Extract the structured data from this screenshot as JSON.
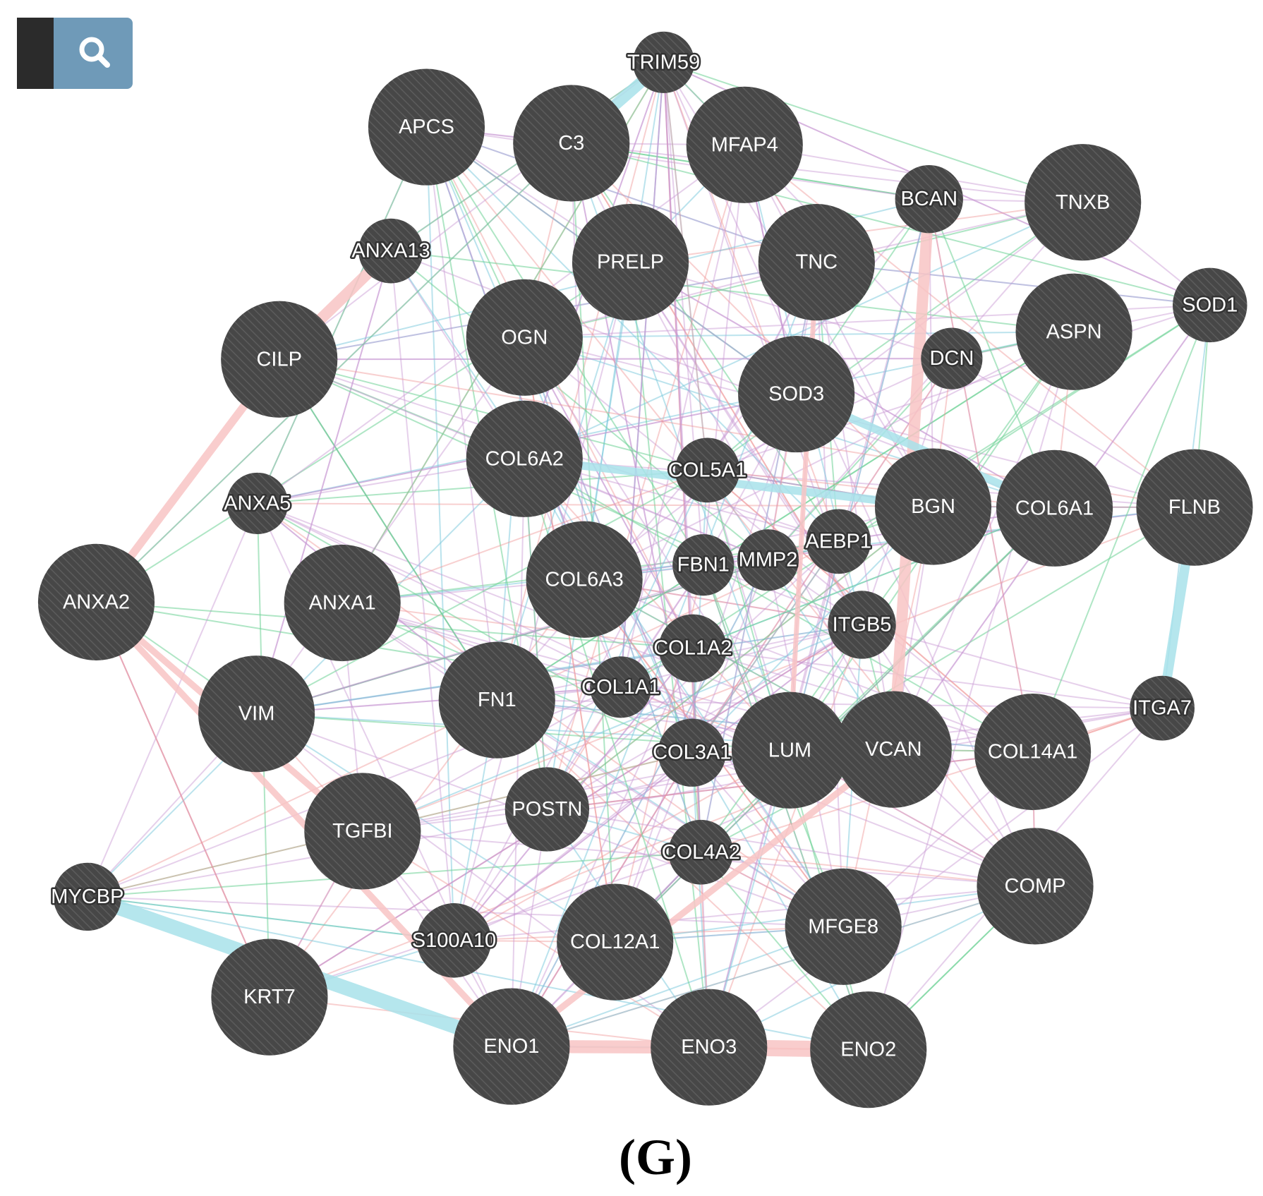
{
  "nodes": [
    {
      "label": "TRIM59"
    },
    {
      "label": "APCS"
    },
    {
      "label": "C3"
    },
    {
      "label": "MFAP4"
    },
    {
      "label": "BCAN"
    },
    {
      "label": "TNXB"
    },
    {
      "label": "ANXA13"
    },
    {
      "label": "PRELP"
    },
    {
      "label": "TNC"
    },
    {
      "label": "SOD1"
    },
    {
      "label": "CILP"
    },
    {
      "label": "OGN"
    },
    {
      "label": "ASPN"
    },
    {
      "label": "DCN"
    },
    {
      "label": "SOD3"
    },
    {
      "label": "COL6A2"
    },
    {
      "label": "COL5A1"
    },
    {
      "label": "BGN"
    },
    {
      "label": "COL6A1"
    },
    {
      "label": "FLNB"
    },
    {
      "label": "ANXA5"
    },
    {
      "label": "AEBP1"
    },
    {
      "label": "FBN1"
    },
    {
      "label": "MMP2"
    },
    {
      "label": "COL6A3"
    },
    {
      "label": "ANXA2"
    },
    {
      "label": "ANXA1"
    },
    {
      "label": "ITGB5"
    },
    {
      "label": "COL1A2"
    },
    {
      "label": "COL1A1"
    },
    {
      "label": "FN1"
    },
    {
      "label": "VIM"
    },
    {
      "label": "ITGA7"
    },
    {
      "label": "COL3A1"
    },
    {
      "label": "LUM"
    },
    {
      "label": "VCAN"
    },
    {
      "label": "COL14A1"
    },
    {
      "label": "POSTN"
    },
    {
      "label": "TGFBI"
    },
    {
      "label": "COL4A2"
    },
    {
      "label": "COMP"
    },
    {
      "label": "MYCBP"
    },
    {
      "label": "MFGE8"
    },
    {
      "label": "S100A10"
    },
    {
      "label": "COL12A1"
    },
    {
      "label": "KRT7"
    },
    {
      "label": "ENO1"
    },
    {
      "label": "ENO3"
    },
    {
      "label": "ENO2"
    }
  ],
  "caption": "(G)"
}
